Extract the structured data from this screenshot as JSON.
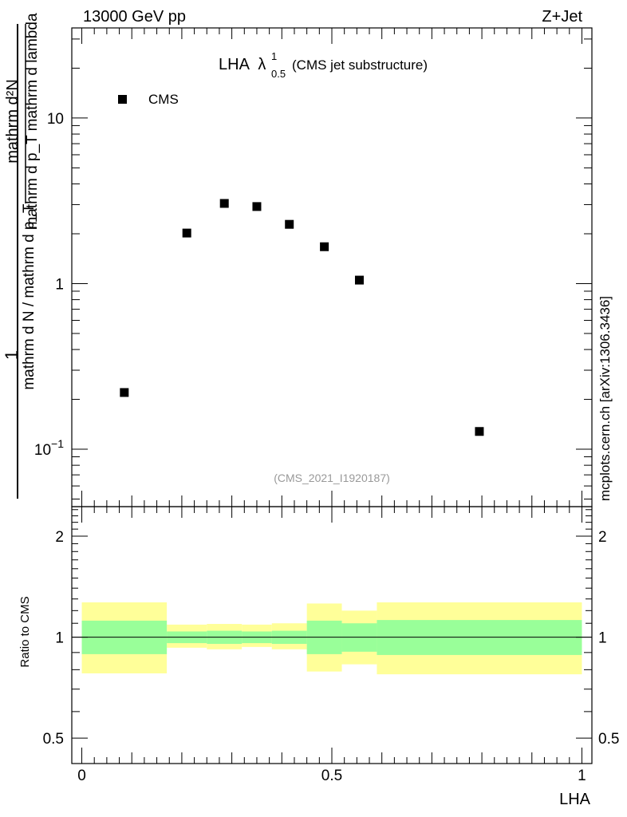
{
  "header": {
    "left": "13000 GeV pp",
    "right": "Z+Jet"
  },
  "watermark": "mcplots.cern.ch [arXiv:1306.3436]",
  "analysis_id": "(CMS_2021_I1920187)",
  "chart_data": [
    {
      "type": "scatter",
      "title": "LHA",
      "title_symbol": "λ",
      "title_sup": "1",
      "title_sub": "0.5",
      "title_suffix": "(CMS jet substructure)",
      "yscale": "log",
      "ylim": [
        0.045,
        35
      ],
      "xlim": [
        -0.02,
        1.02
      ],
      "ylabel_numerator": "mathrm d²N",
      "ylabel_denominator": "mathrm d p_T mathrm d lambda",
      "ylabel_prefix_num": "1",
      "ylabel_prefix_den": "mathrm d N / mathrm d p_T",
      "yticks": [
        {
          "value": 0.1,
          "base": "10",
          "exp": "−1"
        },
        {
          "value": 1,
          "label": "1"
        },
        {
          "value": 10,
          "label": "10"
        }
      ],
      "legend": {
        "position": "top-left",
        "entries": [
          "CMS"
        ]
      },
      "series": [
        {
          "name": "CMS",
          "color": "#000000",
          "x": [
            0.085,
            0.21,
            0.285,
            0.35,
            0.415,
            0.485,
            0.555,
            0.795
          ],
          "y": [
            0.22,
            2.02,
            3.05,
            2.92,
            2.28,
            1.67,
            1.05,
            0.128
          ]
        }
      ]
    },
    {
      "type": "area",
      "ylabel": "Ratio to CMS",
      "xlabel": "LHA",
      "yscale": "log",
      "ylim": [
        0.42,
        2.45
      ],
      "xlim": [
        -0.02,
        1.02
      ],
      "yticks": [
        {
          "value": 0.5,
          "label": "0.5"
        },
        {
          "value": 1,
          "label": "1"
        },
        {
          "value": 2,
          "label": "2"
        }
      ],
      "xticks": [
        {
          "value": 0,
          "label": "0"
        },
        {
          "value": 0.5,
          "label": "0.5"
        },
        {
          "value": 1,
          "label": "1"
        }
      ],
      "reference_line": 1,
      "bins": [
        {
          "lo": 0.0,
          "hi": 0.17,
          "stat_lo": 0.89,
          "stat_hi": 1.12,
          "tot_lo": 0.78,
          "tot_hi": 1.27
        },
        {
          "lo": 0.17,
          "hi": 0.25,
          "stat_lo": 0.96,
          "stat_hi": 1.04,
          "tot_lo": 0.93,
          "tot_hi": 1.09
        },
        {
          "lo": 0.25,
          "hi": 0.32,
          "stat_lo": 0.955,
          "stat_hi": 1.045,
          "tot_lo": 0.92,
          "tot_hi": 1.095
        },
        {
          "lo": 0.32,
          "hi": 0.38,
          "stat_lo": 0.96,
          "stat_hi": 1.04,
          "tot_lo": 0.935,
          "tot_hi": 1.09
        },
        {
          "lo": 0.38,
          "hi": 0.45,
          "stat_lo": 0.955,
          "stat_hi": 1.045,
          "tot_lo": 0.92,
          "tot_hi": 1.1
        },
        {
          "lo": 0.45,
          "hi": 0.52,
          "stat_lo": 0.89,
          "stat_hi": 1.12,
          "tot_lo": 0.79,
          "tot_hi": 1.26
        },
        {
          "lo": 0.52,
          "hi": 0.59,
          "stat_lo": 0.905,
          "stat_hi": 1.1,
          "tot_lo": 0.83,
          "tot_hi": 1.2
        },
        {
          "lo": 0.59,
          "hi": 1.0,
          "stat_lo": 0.885,
          "stat_hi": 1.125,
          "tot_lo": 0.775,
          "tot_hi": 1.27
        }
      ],
      "band_colors": {
        "total": "#ffff99",
        "stat": "#99ff99"
      }
    }
  ]
}
